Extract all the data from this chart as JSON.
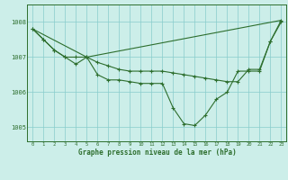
{
  "title": "Graphe pression niveau de la mer (hPa)",
  "background_color": "#cceee9",
  "grid_color": "#88cccc",
  "line_color": "#2d6e2d",
  "xlim": [
    -0.5,
    23.5
  ],
  "ylim": [
    1004.6,
    1008.5
  ],
  "yticks": [
    1005,
    1006,
    1007,
    1008
  ],
  "xticks": [
    0,
    1,
    2,
    3,
    4,
    5,
    6,
    7,
    8,
    9,
    10,
    11,
    12,
    13,
    14,
    15,
    16,
    17,
    18,
    19,
    20,
    21,
    22,
    23
  ],
  "line1_x": [
    0,
    5,
    23
  ],
  "line1_y": [
    1007.8,
    1007.0,
    1008.05
  ],
  "line2_x": [
    0,
    1,
    2,
    3,
    4,
    5,
    6,
    7,
    8,
    9,
    10,
    11,
    12,
    13,
    14,
    15,
    16,
    17,
    18,
    19,
    20,
    21,
    22,
    23
  ],
  "line2_y": [
    1007.8,
    1007.5,
    1007.2,
    1007.0,
    1007.0,
    1007.0,
    1006.85,
    1006.75,
    1006.65,
    1006.6,
    1006.6,
    1006.6,
    1006.6,
    1006.55,
    1006.5,
    1006.45,
    1006.4,
    1006.35,
    1006.3,
    1006.3,
    1006.65,
    1006.65,
    1007.45,
    1008.0
  ],
  "line3_x": [
    0,
    1,
    2,
    3,
    4,
    5,
    6,
    7,
    8,
    9,
    10,
    11,
    12,
    13,
    14,
    15,
    16,
    17,
    18,
    19,
    20,
    21,
    22,
    23
  ],
  "line3_y": [
    1007.8,
    1007.5,
    1007.2,
    1007.0,
    1006.8,
    1007.0,
    1006.5,
    1006.35,
    1006.35,
    1006.3,
    1006.25,
    1006.25,
    1006.25,
    1005.55,
    1005.1,
    1005.05,
    1005.35,
    1005.8,
    1006.0,
    1006.6,
    1006.6,
    1006.6,
    1007.45,
    1008.05
  ]
}
